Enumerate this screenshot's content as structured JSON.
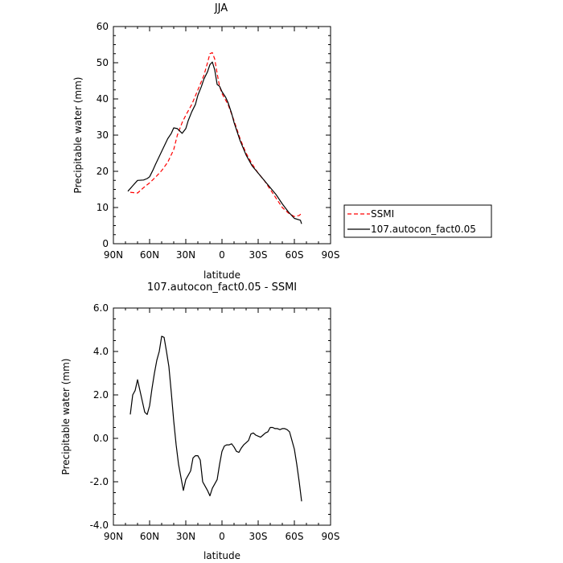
{
  "chart_data": [
    {
      "type": "line",
      "title": "JJA",
      "xlabel": "latitude",
      "ylabel": "Precipitable water (mm)",
      "xlim": [
        90,
        -90
      ],
      "ylim": [
        0,
        60
      ],
      "x_ticks": [
        90,
        60,
        30,
        0,
        -30,
        -60,
        -90
      ],
      "x_tick_labels": [
        "90N",
        "60N",
        "30N",
        "0",
        "30S",
        "60S",
        "90S"
      ],
      "y_ticks": [
        0,
        10,
        20,
        30,
        40,
        50,
        60
      ],
      "y_tick_labels": [
        "0",
        "10",
        "20",
        "30",
        "40",
        "50",
        "60"
      ],
      "legend_position": "outside-right",
      "series": [
        {
          "name": "SSMI",
          "color": "#ff0000",
          "dash": "dashed",
          "x": [
            76,
            70,
            65,
            60,
            55,
            50,
            45,
            40,
            37,
            33,
            30,
            25,
            20,
            15,
            12,
            10,
            8,
            6,
            4,
            2,
            0,
            -5,
            -10,
            -15,
            -20,
            -25,
            -30,
            -35,
            -40,
            -45,
            -50,
            -55,
            -60,
            -64,
            -66
          ],
          "y": [
            14.2,
            14.0,
            15.5,
            16.8,
            18.4,
            20.2,
            22.5,
            26.0,
            30.0,
            33.5,
            35.5,
            38.5,
            42.5,
            46.5,
            50.0,
            52.5,
            52.8,
            51.0,
            47.0,
            43.5,
            41.5,
            38.5,
            34.0,
            29.0,
            25.0,
            22.0,
            19.5,
            17.5,
            15.0,
            12.5,
            10.0,
            8.5,
            7.5,
            7.8,
            8.4
          ]
        },
        {
          "name": "107.autocon_fact0.05",
          "color": "#000000",
          "dash": "solid",
          "x": [
            78,
            74,
            70,
            65,
            62,
            60,
            57,
            55,
            50,
            45,
            42,
            40,
            37,
            33,
            30,
            28,
            25,
            22,
            20,
            17,
            15,
            12,
            10,
            8,
            6,
            4,
            2,
            0,
            -3,
            -5,
            -8,
            -10,
            -15,
            -20,
            -25,
            -30,
            -35,
            -40,
            -45,
            -50,
            -55,
            -60,
            -65,
            -66
          ],
          "y": [
            14.5,
            16.0,
            17.5,
            17.6,
            18.0,
            18.5,
            20.5,
            22.0,
            25.5,
            29.0,
            30.5,
            32.0,
            31.8,
            30.5,
            31.8,
            34.0,
            36.5,
            38.5,
            41.0,
            43.5,
            45.5,
            47.5,
            49.5,
            50.2,
            48.0,
            44.0,
            43.5,
            42.0,
            40.5,
            39.0,
            36.0,
            33.5,
            28.5,
            24.5,
            21.5,
            19.5,
            17.5,
            15.5,
            13.5,
            11.0,
            8.8,
            7.0,
            6.5,
            5.5
          ]
        }
      ]
    },
    {
      "type": "line",
      "title": "107.autocon_fact0.05 - SSMI",
      "xlabel": "latitude",
      "ylabel": "Precipitable water (mm)",
      "xlim": [
        90,
        -90
      ],
      "ylim": [
        -4,
        6
      ],
      "x_ticks": [
        90,
        60,
        30,
        0,
        -30,
        -60,
        -90
      ],
      "x_tick_labels": [
        "90N",
        "60N",
        "30N",
        "0",
        "30S",
        "60S",
        "90S"
      ],
      "y_ticks": [
        -4,
        -2,
        0,
        2,
        4,
        6
      ],
      "y_tick_labels": [
        "-4.0",
        "-2.0",
        "0.0",
        "2.0",
        "4.0",
        "6.0"
      ],
      "series": [
        {
          "color": "#000000",
          "dash": "solid",
          "x": [
            76,
            74,
            72,
            70,
            68,
            66,
            64,
            62,
            60,
            58,
            56,
            54,
            52,
            50,
            48,
            46,
            44,
            42,
            40,
            38,
            36,
            34,
            32,
            30,
            28,
            26,
            24,
            22,
            20,
            18,
            16,
            14,
            12,
            10,
            8,
            6,
            4,
            2,
            0,
            -2,
            -4,
            -6,
            -8,
            -10,
            -12,
            -14,
            -16,
            -18,
            -20,
            -22,
            -24,
            -26,
            -28,
            -30,
            -32,
            -34,
            -36,
            -38,
            -40,
            -42,
            -44,
            -46,
            -48,
            -50,
            -52,
            -54,
            -56,
            -58,
            -60,
            -62,
            -64,
            -66
          ],
          "y": [
            1.1,
            2.0,
            2.2,
            2.7,
            2.2,
            1.7,
            1.2,
            1.1,
            1.5,
            2.3,
            3.0,
            3.6,
            4.0,
            4.7,
            4.65,
            4.0,
            3.3,
            2.1,
            0.8,
            -0.3,
            -1.2,
            -1.8,
            -2.4,
            -1.9,
            -1.7,
            -1.5,
            -0.9,
            -0.8,
            -0.8,
            -1.0,
            -2.0,
            -2.2,
            -2.4,
            -2.65,
            -2.3,
            -2.1,
            -1.9,
            -1.2,
            -0.6,
            -0.35,
            -0.3,
            -0.3,
            -0.25,
            -0.4,
            -0.6,
            -0.65,
            -0.45,
            -0.3,
            -0.2,
            -0.1,
            0.2,
            0.25,
            0.15,
            0.1,
            0.05,
            0.15,
            0.25,
            0.3,
            0.5,
            0.5,
            0.45,
            0.45,
            0.4,
            0.45,
            0.45,
            0.4,
            0.3,
            -0.1,
            -0.5,
            -1.2,
            -2.0,
            -2.9
          ]
        }
      ]
    }
  ]
}
